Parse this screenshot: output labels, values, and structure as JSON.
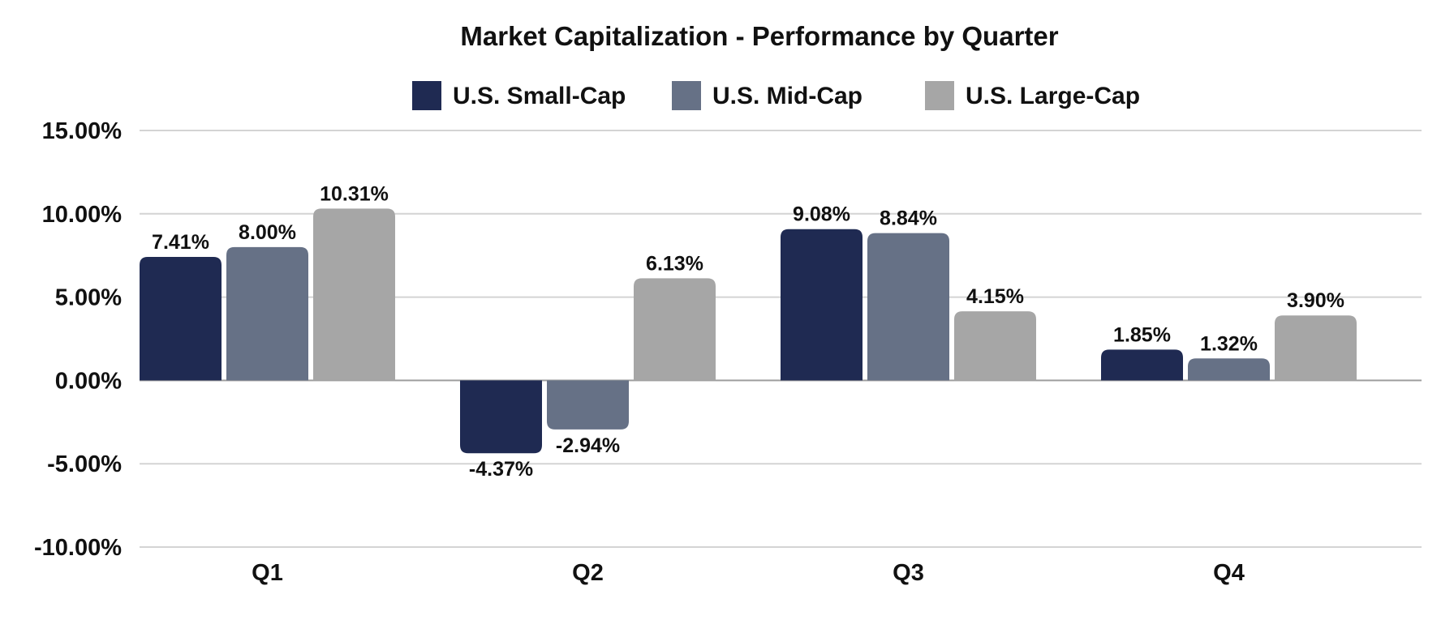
{
  "chart_data": {
    "type": "bar",
    "title": "Market Capitalization - Performance by Quarter",
    "xlabel": "",
    "ylabel": "",
    "categories": [
      "Q1",
      "Q2",
      "Q3",
      "Q4"
    ],
    "series": [
      {
        "name": "U.S. Small-Cap",
        "color": "#1f2a52",
        "values": [
          7.41,
          -4.37,
          9.08,
          1.85
        ],
        "labels": [
          "7.41%",
          "-4.37%",
          "9.08%",
          "1.85%"
        ]
      },
      {
        "name": "U.S. Mid-Cap",
        "color": "#667186",
        "values": [
          8.0,
          -2.94,
          8.84,
          1.32
        ],
        "labels": [
          "8.00%",
          "-2.94%",
          "8.84%",
          "1.32%"
        ]
      },
      {
        "name": "U.S. Large-Cap",
        "color": "#a6a6a6",
        "values": [
          10.31,
          6.13,
          4.15,
          3.9
        ],
        "labels": [
          "10.31%",
          "6.13%",
          "4.15%",
          "3.90%"
        ]
      }
    ],
    "ylim": [
      -10,
      15
    ],
    "yticks": [
      15,
      10,
      5,
      0,
      -5,
      -10
    ],
    "ytick_labels": [
      "15.00%",
      "10.00%",
      "5.00%",
      "0.00%",
      "-5.00%",
      "-10.00%"
    ],
    "grid": true,
    "legend_position": "top-center"
  }
}
